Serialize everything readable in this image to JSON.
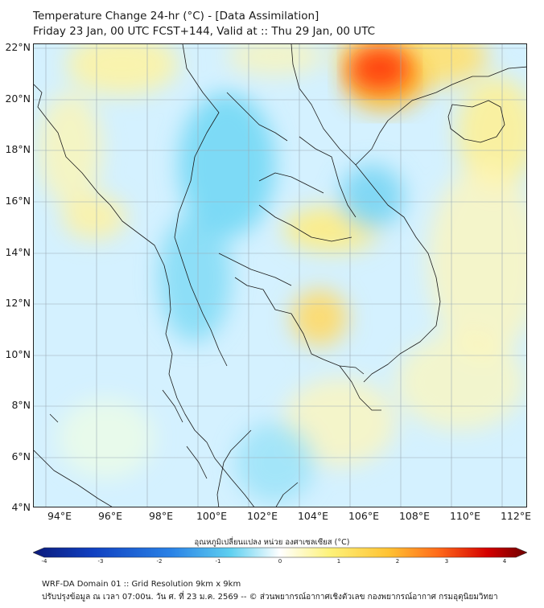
{
  "header": {
    "title_line1": "Temperature Change 24-hr (°C) - [Data Assimilation]",
    "title_line2": "Friday 23 Jan, 00 UTC FCST+144, Valid at :: Thu 29 Jan, 00 UTC"
  },
  "map": {
    "lat_labels": [
      "22°N",
      "20°N",
      "18°N",
      "16°N",
      "14°N",
      "12°N",
      "10°N",
      "8°N",
      "6°N",
      "4°N"
    ],
    "lon_labels": [
      "94°E",
      "96°E",
      "98°E",
      "100°E",
      "102°E",
      "104°E",
      "106°E",
      "108°E",
      "110°E",
      "112°E"
    ],
    "lat_range": [
      4,
      22
    ],
    "lon_range": [
      93,
      112.5
    ],
    "gridlines": true
  },
  "colorbar": {
    "title": "อุณหภูมิเปลี่ยนแปลง หน่วย องศาเซลเซียส (°C)",
    "range": [
      -4,
      4
    ],
    "ticks": [
      "-4",
      "-3",
      "-2",
      "-1",
      "0",
      "1",
      "2",
      "3",
      "4"
    ],
    "colors": [
      "#0b1a7a",
      "#1040c0",
      "#2a82e6",
      "#5fd0f0",
      "#ffffff",
      "#fdf27a",
      "#ffc233",
      "#ff6a1a",
      "#d40000",
      "#6e0000"
    ]
  },
  "footer": {
    "line1": "WRF-DA Domain 01 :: Grid Resolution 9km x 9km",
    "line2": "ปรับปรุงข้อมูล ณ เวลา 07:00น. วัน ศ. ที่ 23 ม.ค. 2569 -- © ส่วนพยากรณ์อากาศเชิงตัวเลข กองพยากรณ์อากาศ กรมอุตุนิยมวิทยา"
  }
}
